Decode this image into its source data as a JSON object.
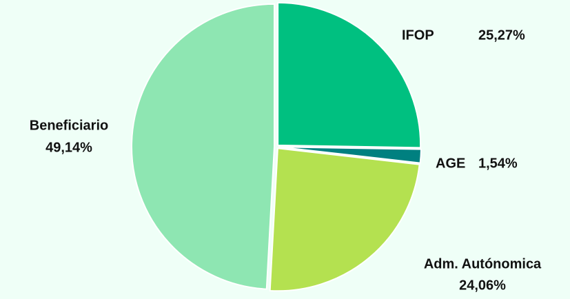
{
  "chart_data": {
    "type": "pie",
    "categories": [
      "IFOP",
      "AGE",
      "Adm. Autónomica",
      "Beneficiario"
    ],
    "values": [
      25.27,
      1.54,
      24.06,
      49.14
    ],
    "value_labels": [
      "25,27%",
      "1,54%",
      "24,06%",
      "49,14%"
    ],
    "colors": [
      "#00c080",
      "#008080",
      "#b4e150",
      "#8ee6b2"
    ]
  }
}
